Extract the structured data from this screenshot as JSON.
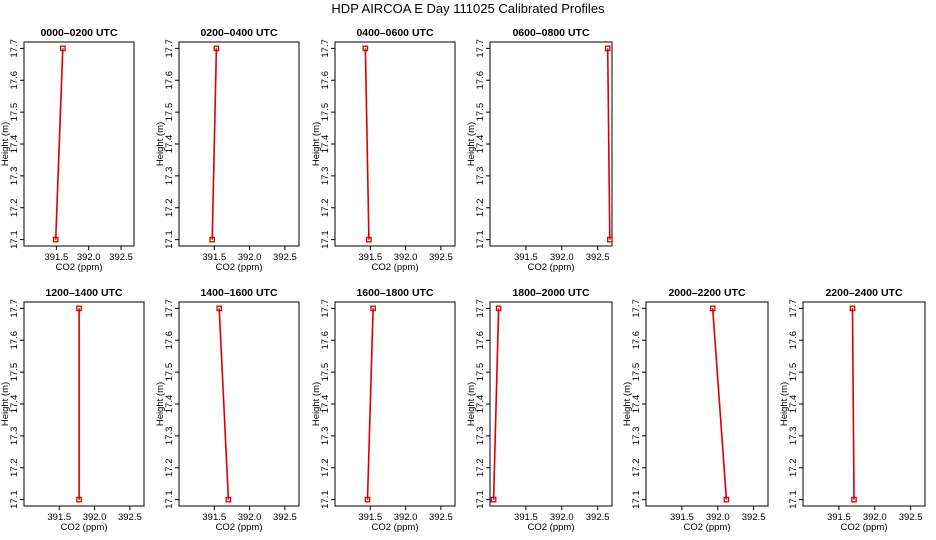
{
  "page": {
    "title": "HDP AIRCOA E  Day 111025  Calibrated Profiles"
  },
  "colors": {
    "profile_line": "#dd0000",
    "marker": "#dd0000",
    "frame": "#000000",
    "background": "#ffffff"
  },
  "chart_data": [
    {
      "type": "line",
      "title": "0000–0200 UTC",
      "xlabel": "CO2 (ppm)",
      "ylabel": "Height (m)",
      "xlim": [
        391.0,
        392.7
      ],
      "ylim": [
        17.08,
        17.72
      ],
      "xticks": [
        391.5,
        392.0,
        392.5
      ],
      "xtick_labels": [
        "391.5",
        "392.0",
        "392.5"
      ],
      "yticks": [
        17.1,
        17.2,
        17.3,
        17.4,
        17.5,
        17.6,
        17.7
      ],
      "ytick_labels": [
        "17.1",
        "17.2",
        "17.3",
        "17.4",
        "17.5",
        "17.6",
        "17.7"
      ],
      "grid": false,
      "series": [
        {
          "x": [
            391.49,
            391.6
          ],
          "y": [
            17.1,
            17.7
          ]
        }
      ]
    },
    {
      "type": "line",
      "title": "0200–0400 UTC",
      "xlabel": "CO2 (ppm)",
      "ylabel": "Height (m)",
      "xlim": [
        391.0,
        392.7
      ],
      "ylim": [
        17.08,
        17.72
      ],
      "xticks": [
        391.5,
        392.0,
        392.5
      ],
      "xtick_labels": [
        "391.5",
        "392.0",
        "392.5"
      ],
      "yticks": [
        17.1,
        17.2,
        17.3,
        17.4,
        17.5,
        17.6,
        17.7
      ],
      "ytick_labels": [
        "17.1",
        "17.2",
        "17.3",
        "17.4",
        "17.5",
        "17.6",
        "17.7"
      ],
      "grid": false,
      "series": [
        {
          "x": [
            391.47,
            391.53
          ],
          "y": [
            17.1,
            17.7
          ]
        }
      ]
    },
    {
      "type": "line",
      "title": "0400–0600 UTC",
      "xlabel": "CO2 (ppm)",
      "ylabel": "Height (m)",
      "xlim": [
        391.0,
        392.7
      ],
      "ylim": [
        17.08,
        17.72
      ],
      "xticks": [
        391.5,
        392.0,
        392.5
      ],
      "xtick_labels": [
        "391.5",
        "392.0",
        "392.5"
      ],
      "yticks": [
        17.1,
        17.2,
        17.3,
        17.4,
        17.5,
        17.6,
        17.7
      ],
      "ytick_labels": [
        "17.1",
        "17.2",
        "17.3",
        "17.4",
        "17.5",
        "17.6",
        "17.7"
      ],
      "grid": false,
      "series": [
        {
          "x": [
            391.48,
            391.43
          ],
          "y": [
            17.1,
            17.7
          ]
        }
      ]
    },
    {
      "type": "line",
      "title": "0600–0800 UTC",
      "xlabel": "CO2 (ppm)",
      "ylabel": "Height (m)",
      "xlim": [
        391.0,
        392.7
      ],
      "ylim": [
        17.08,
        17.72
      ],
      "xticks": [
        391.5,
        392.0,
        392.5
      ],
      "xtick_labels": [
        "391.5",
        "392.0",
        "392.5"
      ],
      "yticks": [
        17.1,
        17.2,
        17.3,
        17.4,
        17.5,
        17.6,
        17.7
      ],
      "ytick_labels": [
        "17.1",
        "17.2",
        "17.3",
        "17.4",
        "17.5",
        "17.6",
        "17.7"
      ],
      "grid": false,
      "series": [
        {
          "x": [
            392.67,
            392.64
          ],
          "y": [
            17.1,
            17.7
          ]
        }
      ]
    },
    {
      "type": "line",
      "title": "1200–1400 UTC",
      "xlabel": "CO2 (ppm)",
      "ylabel": "Height (m)",
      "xlim": [
        391.0,
        392.7
      ],
      "ylim": [
        17.08,
        17.72
      ],
      "xticks": [
        391.5,
        392.0,
        392.5
      ],
      "xtick_labels": [
        "391.5",
        "392.0",
        "392.5"
      ],
      "yticks": [
        17.1,
        17.2,
        17.3,
        17.4,
        17.5,
        17.6,
        17.7
      ],
      "ytick_labels": [
        "17.1",
        "17.2",
        "17.3",
        "17.4",
        "17.5",
        "17.6",
        "17.7"
      ],
      "grid": false,
      "series": [
        {
          "x": [
            391.78,
            391.78
          ],
          "y": [
            17.1,
            17.7
          ]
        }
      ]
    },
    {
      "type": "line",
      "title": "1400–1600 UTC",
      "xlabel": "CO2 (ppm)",
      "ylabel": "Height (m)",
      "xlim": [
        391.0,
        392.7
      ],
      "ylim": [
        17.08,
        17.72
      ],
      "xticks": [
        391.5,
        392.0,
        392.5
      ],
      "xtick_labels": [
        "391.5",
        "392.0",
        "392.5"
      ],
      "yticks": [
        17.1,
        17.2,
        17.3,
        17.4,
        17.5,
        17.6,
        17.7
      ],
      "ytick_labels": [
        "17.1",
        "17.2",
        "17.3",
        "17.4",
        "17.5",
        "17.6",
        "17.7"
      ],
      "grid": false,
      "series": [
        {
          "x": [
            391.7,
            391.57
          ],
          "y": [
            17.1,
            17.7
          ]
        }
      ]
    },
    {
      "type": "line",
      "title": "1600–1800 UTC",
      "xlabel": "CO2 (ppm)",
      "ylabel": "Height (m)",
      "xlim": [
        391.0,
        392.7
      ],
      "ylim": [
        17.08,
        17.72
      ],
      "xticks": [
        391.5,
        392.0,
        392.5
      ],
      "xtick_labels": [
        "391.5",
        "392.0",
        "392.5"
      ],
      "yticks": [
        17.1,
        17.2,
        17.3,
        17.4,
        17.5,
        17.6,
        17.7
      ],
      "ytick_labels": [
        "17.1",
        "17.2",
        "17.3",
        "17.4",
        "17.5",
        "17.6",
        "17.7"
      ],
      "grid": false,
      "series": [
        {
          "x": [
            391.46,
            391.54
          ],
          "y": [
            17.1,
            17.7
          ]
        }
      ]
    },
    {
      "type": "line",
      "title": "1800–2000 UTC",
      "xlabel": "CO2 (ppm)",
      "ylabel": "Height (m)",
      "xlim": [
        391.0,
        392.7
      ],
      "ylim": [
        17.08,
        17.72
      ],
      "xticks": [
        391.5,
        392.0,
        392.5
      ],
      "xtick_labels": [
        "391.5",
        "392.0",
        "392.5"
      ],
      "yticks": [
        17.1,
        17.2,
        17.3,
        17.4,
        17.5,
        17.6,
        17.7
      ],
      "ytick_labels": [
        "17.1",
        "17.2",
        "17.3",
        "17.4",
        "17.5",
        "17.6",
        "17.7"
      ],
      "grid": false,
      "series": [
        {
          "x": [
            391.05,
            391.12
          ],
          "y": [
            17.1,
            17.7
          ]
        }
      ]
    },
    {
      "type": "line",
      "title": "2000–2200 UTC",
      "xlabel": "CO2 (ppm)",
      "ylabel": "Height (m)",
      "xlim": [
        391.0,
        392.7
      ],
      "ylim": [
        17.08,
        17.72
      ],
      "xticks": [
        391.5,
        392.0,
        392.5
      ],
      "xtick_labels": [
        "391.5",
        "392.0",
        "392.5"
      ],
      "yticks": [
        17.1,
        17.2,
        17.3,
        17.4,
        17.5,
        17.6,
        17.7
      ],
      "ytick_labels": [
        "17.1",
        "17.2",
        "17.3",
        "17.4",
        "17.5",
        "17.6",
        "17.7"
      ],
      "grid": false,
      "series": [
        {
          "x": [
            392.12,
            391.93
          ],
          "y": [
            17.1,
            17.7
          ]
        }
      ]
    },
    {
      "type": "line",
      "title": "2200–2400 UTC",
      "xlabel": "CO2 (ppm)",
      "ylabel": "Height (m)",
      "xlim": [
        391.0,
        392.7
      ],
      "ylim": [
        17.08,
        17.72
      ],
      "xticks": [
        391.5,
        392.0,
        392.5
      ],
      "xtick_labels": [
        "391.5",
        "392.0",
        "392.5"
      ],
      "yticks": [
        17.1,
        17.2,
        17.3,
        17.4,
        17.5,
        17.6,
        17.7
      ],
      "ytick_labels": [
        "17.1",
        "17.2",
        "17.3",
        "17.4",
        "17.5",
        "17.6",
        "17.7"
      ],
      "grid": false,
      "series": [
        {
          "x": [
            391.71,
            391.69
          ],
          "y": [
            17.1,
            17.7
          ]
        }
      ]
    }
  ]
}
